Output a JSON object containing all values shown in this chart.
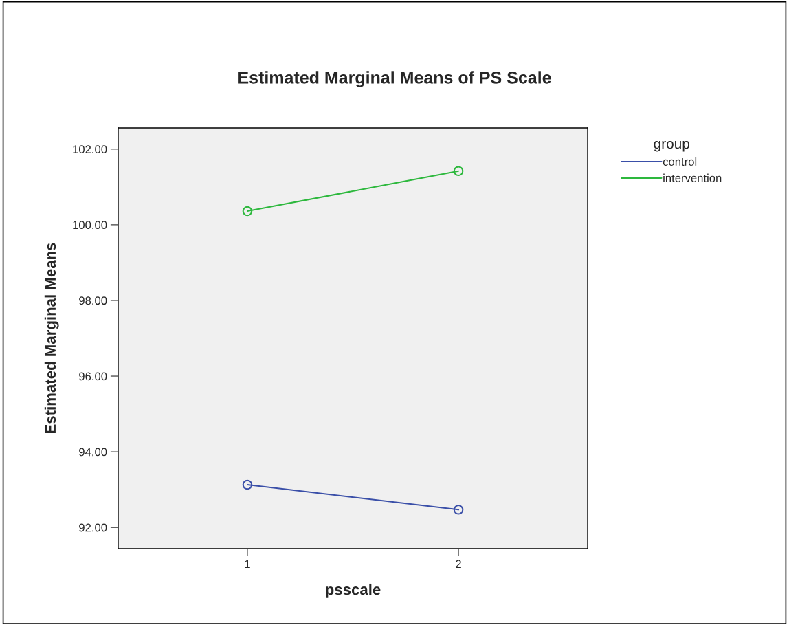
{
  "chart_data": {
    "type": "line",
    "title": "Estimated Marginal Means of PS Scale",
    "xlabel": "psscale",
    "ylabel": "Estimated Marginal Means",
    "legend_title": "group",
    "categories": [
      "1",
      "2"
    ],
    "series": [
      {
        "name": "control",
        "color": "#3a4fa8",
        "values": [
          93.13,
          92.47
        ]
      },
      {
        "name": "intervention",
        "color": "#2db83d",
        "values": [
          100.36,
          101.42
        ]
      }
    ],
    "ylim": [
      91.44,
      102.56
    ],
    "yticks": [
      {
        "value": 92,
        "label": "92.00"
      },
      {
        "value": 94,
        "label": "94.00"
      },
      {
        "value": 96,
        "label": "96.00"
      },
      {
        "value": 98,
        "label": "98.00"
      },
      {
        "value": 100,
        "label": "100.00"
      },
      {
        "value": 102,
        "label": "102.00"
      }
    ],
    "marker": "circle",
    "line_style": "solid",
    "grid": false,
    "legend": "top right"
  }
}
